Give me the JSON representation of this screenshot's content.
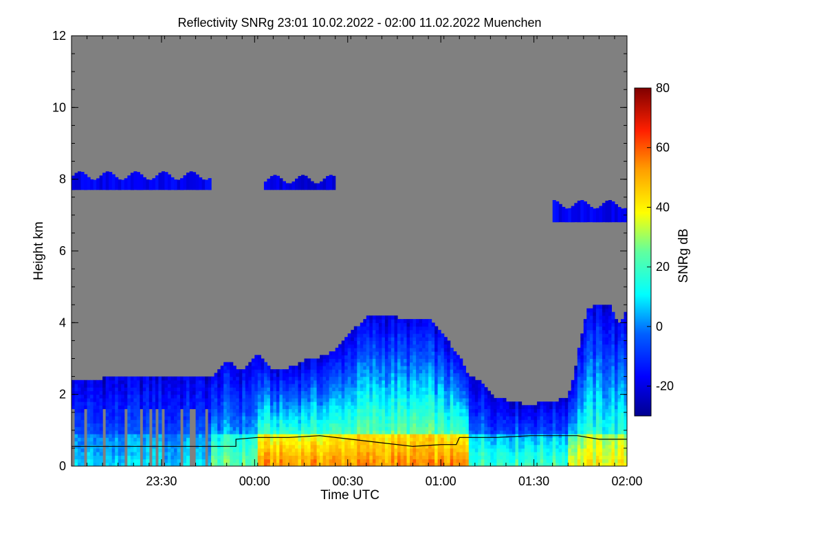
{
  "chart_data": {
    "type": "heatmap",
    "title": "Reflectivity SNRg   23:01 10.02.2022 - 02:00 11.02.2022 Muenchen",
    "xlabel": "Time UTC",
    "ylabel": "Height km",
    "colorbar_label": "SNRg dB",
    "x_range_minutes_after_2301": [
      0,
      179
    ],
    "xlim": [
      "23:01",
      "02:00"
    ],
    "ylim": [
      0,
      12
    ],
    "clim": [
      -30,
      80
    ],
    "colormap": "jet",
    "background_color": "#808080",
    "x_ticks": [
      {
        "label": "23:30",
        "minutes": 29
      },
      {
        "label": "00:00",
        "minutes": 59
      },
      {
        "label": "00:30",
        "minutes": 89
      },
      {
        "label": "01:00",
        "minutes": 119
      },
      {
        "label": "01:30",
        "minutes": 149
      },
      {
        "label": "02:00",
        "minutes": 179
      }
    ],
    "y_ticks": [
      {
        "label": "0",
        "value": 0
      },
      {
        "label": "2",
        "value": 2
      },
      {
        "label": "4",
        "value": 4
      },
      {
        "label": "6",
        "value": 6
      },
      {
        "label": "8",
        "value": 8
      },
      {
        "label": "10",
        "value": 10
      },
      {
        "label": "12",
        "value": 12
      }
    ],
    "colorbar_ticks": [
      {
        "label": "80",
        "value": 80
      },
      {
        "label": "60",
        "value": 60
      },
      {
        "label": "40",
        "value": 40
      },
      {
        "label": "20",
        "value": 20
      },
      {
        "label": "0",
        "value": 0
      },
      {
        "label": "-20",
        "value": -20
      }
    ],
    "cloud_layers": [
      {
        "t0": 0,
        "t1": 45,
        "bottom": 7.7,
        "top": 8.1,
        "snr": -18
      },
      {
        "t0": 62,
        "t1": 85,
        "bottom": 7.7,
        "top": 8.0,
        "snr": -20
      },
      {
        "t0": 155,
        "t1": 179,
        "bottom": 6.8,
        "top": 7.3,
        "snr": -18
      }
    ],
    "precip_top_profile": [
      {
        "t": 0,
        "h": 2.4
      },
      {
        "t": 10,
        "h": 2.4
      },
      {
        "t": 20,
        "h": 2.45
      },
      {
        "t": 30,
        "h": 2.45
      },
      {
        "t": 40,
        "h": 2.5
      },
      {
        "t": 45,
        "h": 2.4
      },
      {
        "t": 50,
        "h": 2.9
      },
      {
        "t": 55,
        "h": 2.6
      },
      {
        "t": 60,
        "h": 3.1
      },
      {
        "t": 65,
        "h": 2.6
      },
      {
        "t": 70,
        "h": 2.7
      },
      {
        "t": 75,
        "h": 2.9
      },
      {
        "t": 80,
        "h": 3.0
      },
      {
        "t": 85,
        "h": 3.2
      },
      {
        "t": 90,
        "h": 3.7
      },
      {
        "t": 95,
        "h": 4.1
      },
      {
        "t": 100,
        "h": 4.2
      },
      {
        "t": 105,
        "h": 4.1
      },
      {
        "t": 110,
        "h": 4.0
      },
      {
        "t": 115,
        "h": 4.05
      },
      {
        "t": 120,
        "h": 3.6
      },
      {
        "t": 125,
        "h": 3.0
      },
      {
        "t": 128,
        "h": 2.5
      },
      {
        "t": 132,
        "h": 2.3
      },
      {
        "t": 136,
        "h": 1.9
      },
      {
        "t": 140,
        "h": 1.8
      },
      {
        "t": 145,
        "h": 1.7
      },
      {
        "t": 150,
        "h": 1.7
      },
      {
        "t": 155,
        "h": 1.75
      },
      {
        "t": 160,
        "h": 1.9
      },
      {
        "t": 162,
        "h": 2.5
      },
      {
        "t": 164,
        "h": 3.5
      },
      {
        "t": 166,
        "h": 4.3
      },
      {
        "t": 170,
        "h": 4.5
      },
      {
        "t": 174,
        "h": 4.4
      },
      {
        "t": 176,
        "h": 3.9
      },
      {
        "t": 179,
        "h": 4.3
      }
    ],
    "melting_layer_line": [
      {
        "t": 0,
        "h": 0.55
      },
      {
        "t": 53,
        "h": 0.55
      },
      {
        "t": 53,
        "h": 0.75
      },
      {
        "t": 60,
        "h": 0.8
      },
      {
        "t": 70,
        "h": 0.8
      },
      {
        "t": 80,
        "h": 0.85
      },
      {
        "t": 90,
        "h": 0.75
      },
      {
        "t": 100,
        "h": 0.65
      },
      {
        "t": 110,
        "h": 0.55
      },
      {
        "t": 119,
        "h": 0.6
      },
      {
        "t": 124,
        "h": 0.6
      },
      {
        "t": 125,
        "h": 0.8
      },
      {
        "t": 137,
        "h": 0.8
      },
      {
        "t": 148,
        "h": 0.85
      },
      {
        "t": 163,
        "h": 0.85
      },
      {
        "t": 170,
        "h": 0.75
      },
      {
        "t": 179,
        "h": 0.75
      }
    ]
  }
}
